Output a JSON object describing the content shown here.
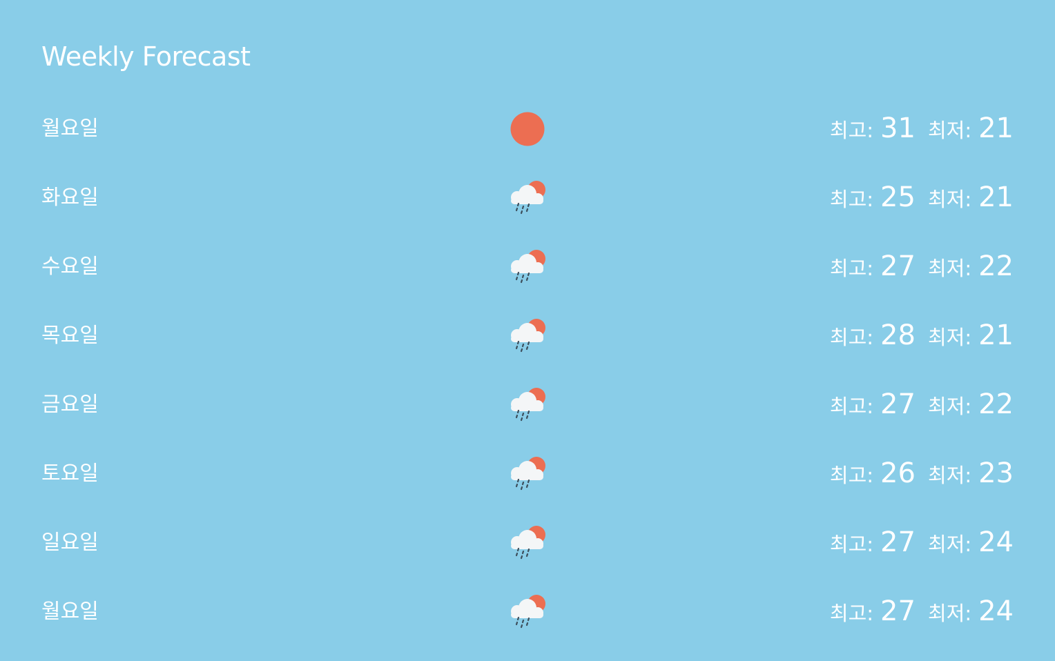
{
  "header": {
    "title": "Weekly Forecast"
  },
  "forecast": {
    "high_label": "최고:",
    "low_label": "최저:",
    "days": [
      {
        "day": "월요일",
        "icon": "sun-icon",
        "high": "31",
        "low": "21"
      },
      {
        "day": "화요일",
        "icon": "cloud-rain-sun-icon",
        "high": "25",
        "low": "21"
      },
      {
        "day": "수요일",
        "icon": "cloud-rain-sun-icon",
        "high": "27",
        "low": "22"
      },
      {
        "day": "목요일",
        "icon": "cloud-rain-sun-icon",
        "high": "28",
        "low": "21"
      },
      {
        "day": "금요일",
        "icon": "cloud-rain-sun-icon",
        "high": "27",
        "low": "22"
      },
      {
        "day": "토요일",
        "icon": "cloud-rain-sun-icon",
        "high": "26",
        "low": "23"
      },
      {
        "day": "일요일",
        "icon": "cloud-rain-sun-icon",
        "high": "27",
        "low": "24"
      },
      {
        "day": "월요일",
        "icon": "cloud-rain-sun-icon",
        "high": "27",
        "low": "24"
      }
    ]
  },
  "colors": {
    "background": "#89cde8",
    "text": "#ffffff",
    "sun": "#ec6e52",
    "cloud": "#f4f6f7",
    "rain": "#3d4f5c"
  }
}
